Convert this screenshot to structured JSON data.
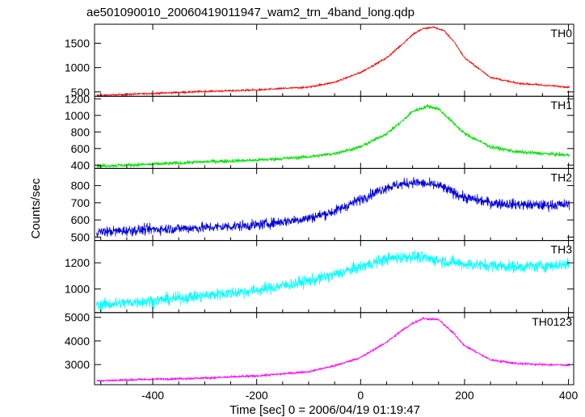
{
  "chart_data": {
    "type": "line",
    "title": "ae501090010_20060419011947_wam2_trn_4band_long.qdp",
    "xlabel": "Time [sec] 0 = 2006/04/19 01:19:47",
    "ylabel": "Counts/sec",
    "xlim": [
      -512,
      410
    ],
    "xticks": [
      -400,
      -200,
      0,
      200,
      400
    ],
    "grid": false,
    "panels": [
      {
        "name": "TH0",
        "color": "#ff0000",
        "ylim": [
          410,
          1890
        ],
        "yticks": [
          500,
          1000,
          1500
        ],
        "noise": 18,
        "x": [
          -500,
          -400,
          -300,
          -200,
          -100,
          -50,
          0,
          50,
          80,
          100,
          120,
          140,
          160,
          180,
          200,
          250,
          300,
          350,
          400
        ],
        "y": [
          430,
          470,
          510,
          540,
          600,
          700,
          900,
          1200,
          1480,
          1680,
          1800,
          1830,
          1760,
          1530,
          1200,
          800,
          680,
          640,
          600
        ]
      },
      {
        "name": "TH1",
        "color": "#00e000",
        "ylim": [
          360,
          1230
        ],
        "yticks": [
          400,
          600,
          800,
          1000,
          1200
        ],
        "noise": 22,
        "x": [
          -500,
          -400,
          -300,
          -200,
          -100,
          -50,
          0,
          50,
          80,
          100,
          130,
          150,
          170,
          200,
          250,
          300,
          350,
          400
        ],
        "y": [
          390,
          410,
          440,
          460,
          500,
          540,
          620,
          780,
          930,
          1050,
          1110,
          1080,
          960,
          780,
          620,
          560,
          540,
          520
        ]
      },
      {
        "name": "TH2",
        "color": "#0000e0",
        "ylim": [
          480,
          900
        ],
        "yticks": [
          500,
          600,
          700,
          800
        ],
        "noise": 30,
        "x": [
          -500,
          -400,
          -300,
          -200,
          -100,
          -50,
          0,
          50,
          100,
          150,
          200,
          250,
          300,
          350,
          400
        ],
        "y": [
          530,
          545,
          555,
          570,
          610,
          650,
          720,
          790,
          820,
          800,
          730,
          700,
          690,
          685,
          690
        ]
      },
      {
        "name": "TH3",
        "color": "#00ffff",
        "ylim": [
          820,
          1370
        ],
        "yticks": [
          1000,
          1200
        ],
        "noise": 45,
        "x": [
          -500,
          -400,
          -300,
          -200,
          -100,
          -50,
          0,
          50,
          100,
          150,
          200,
          250,
          300,
          350,
          400
        ],
        "y": [
          880,
          910,
          950,
          990,
          1060,
          1110,
          1170,
          1230,
          1250,
          1220,
          1190,
          1180,
          1170,
          1175,
          1190
        ]
      },
      {
        "name": "TH0123",
        "color": "#ff00ff",
        "ylim": [
          2150,
          5200
        ],
        "yticks": [
          3000,
          4000,
          5000
        ],
        "noise": 45,
        "x": [
          -500,
          -400,
          -300,
          -200,
          -100,
          -50,
          0,
          50,
          80,
          100,
          120,
          150,
          180,
          200,
          250,
          300,
          350,
          400
        ],
        "y": [
          2320,
          2380,
          2430,
          2520,
          2700,
          2950,
          3300,
          3950,
          4450,
          4750,
          4950,
          4900,
          4300,
          3800,
          3200,
          3050,
          3000,
          2980
        ]
      }
    ]
  }
}
